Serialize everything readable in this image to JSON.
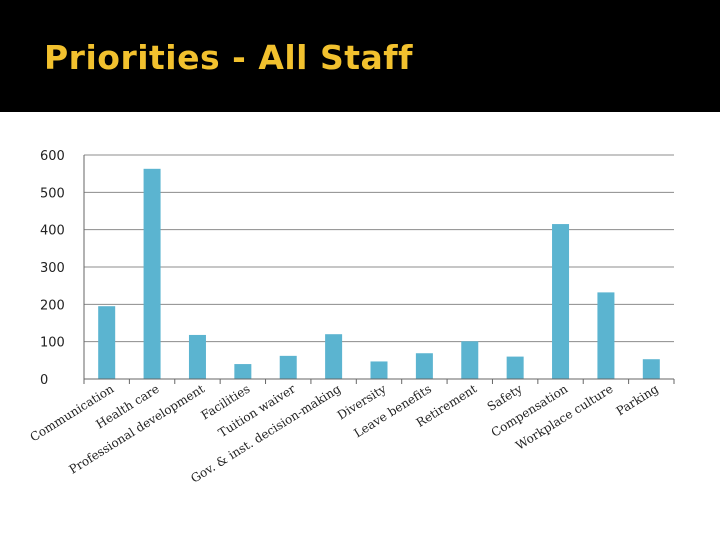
{
  "slide": {
    "title": "Priorities - All Staff"
  },
  "colors": {
    "bar": "#5bb4d0",
    "title_band": "#000000",
    "title_text": "#f2c12e",
    "grid": "#8c8c8c"
  },
  "chart_data": {
    "type": "bar",
    "title": "",
    "xlabel": "",
    "ylabel": "",
    "ylim": [
      0,
      600
    ],
    "yticks": [
      0,
      100,
      200,
      300,
      400,
      500,
      600
    ],
    "grid": true,
    "legend": "none",
    "categories": [
      "Communication",
      "Health care",
      "Professional development",
      "Facilities",
      "Tuition waiver",
      "Gov. & inst. decision-making",
      "Diversity",
      "Leave benefits",
      "Retirement",
      "Safety",
      "Compensation",
      "Workplace culture",
      "Parking"
    ],
    "values": [
      195,
      563,
      118,
      40,
      62,
      120,
      47,
      69,
      101,
      60,
      415,
      232,
      53
    ]
  }
}
